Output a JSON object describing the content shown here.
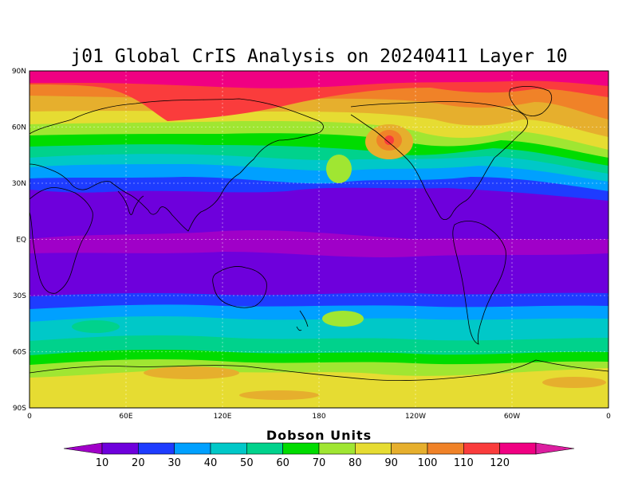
{
  "map": {
    "title": "j01 Global CrIS Analysis on 20240411 Layer 10",
    "lat_ticks": [
      "90N",
      "60N",
      "30N",
      "EQ",
      "30S",
      "60S",
      "90S"
    ],
    "lon_ticks": [
      "0",
      "60E",
      "120E",
      "180",
      "120W",
      "60W",
      "0"
    ],
    "field_name": "Dobson Units",
    "colorbar": {
      "labels": [
        "10",
        "20",
        "30",
        "40",
        "50",
        "60",
        "70",
        "80",
        "90",
        "100",
        "110",
        "120"
      ],
      "colors": [
        "#a000c8",
        "#6e00dc",
        "#1e3cff",
        "#00a0ff",
        "#00c8c8",
        "#00d28c",
        "#00dc00",
        "#a0e632",
        "#e6dc32",
        "#e6af2d",
        "#f08228",
        "#fa3c3c",
        "#f00082",
        "#dc1ea0"
      ]
    }
  }
}
